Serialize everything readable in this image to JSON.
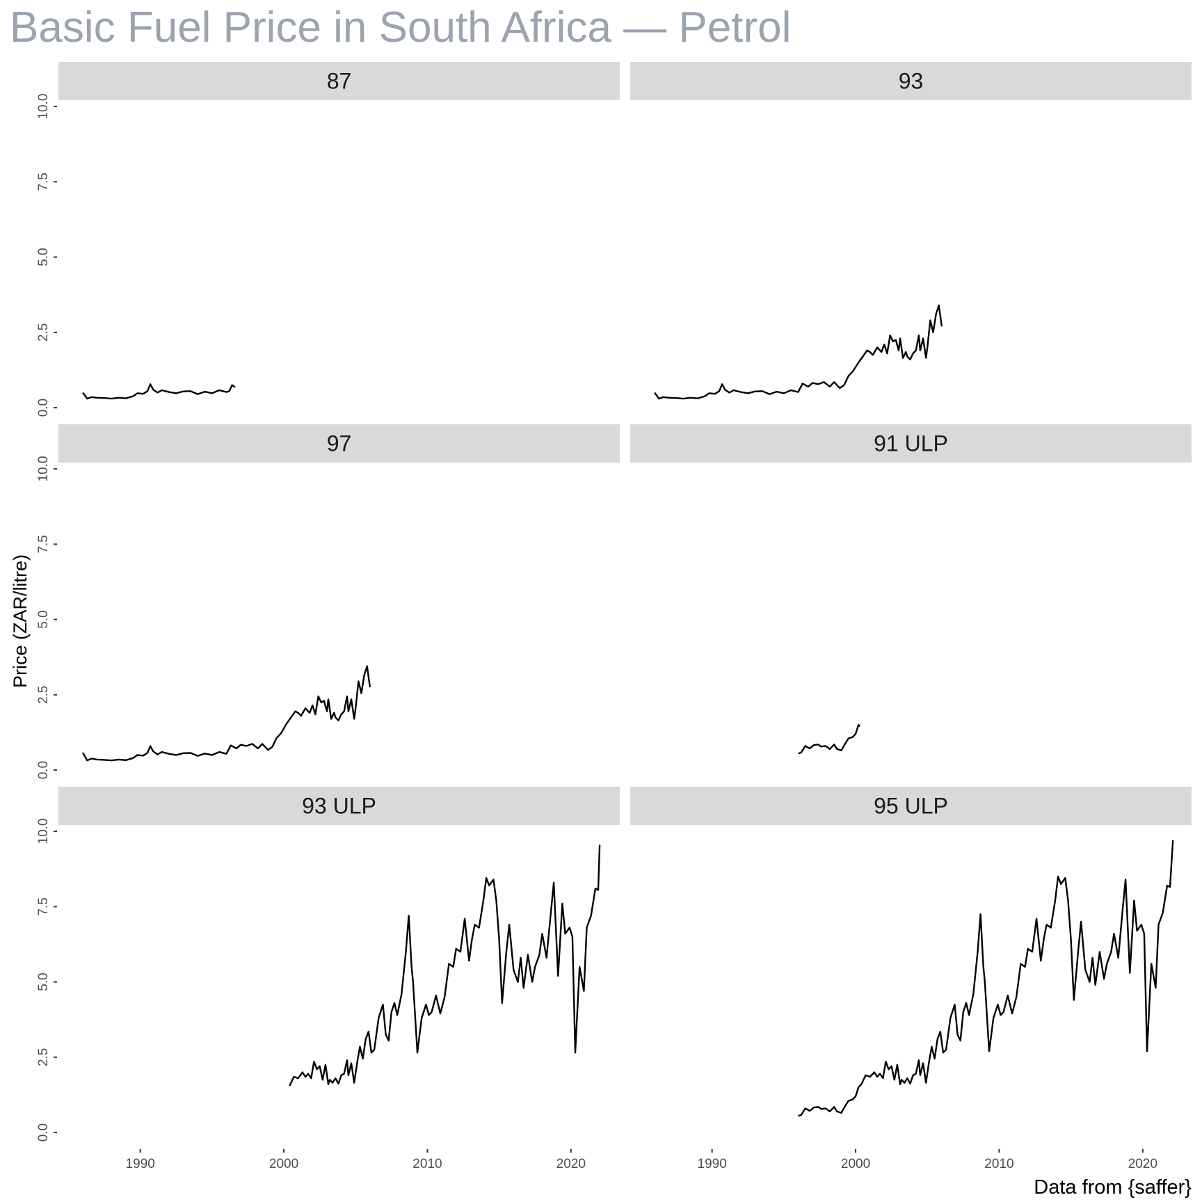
{
  "chart_data": {
    "type": "line",
    "title": "Basic Fuel Price in South Africa — Petrol",
    "xlabel": "",
    "ylabel": "Price (ZAR/litre)",
    "caption": "Data from {saffer}",
    "xlim": [
      1984.3,
      2023.4
    ],
    "ylim": [
      -0.46,
      10.21
    ],
    "x_ticks": [
      1990,
      2000,
      2010,
      2020
    ],
    "x_tick_labels": [
      "1990",
      "2000",
      "2010",
      "2020"
    ],
    "y_ticks": [
      0,
      2.5,
      5,
      7.5,
      10
    ],
    "y_tick_labels": [
      "0.0",
      "2.5",
      "5.0",
      "7.5",
      "10.0"
    ],
    "grid": false,
    "facet_layout": "3 rows x 2 columns",
    "panels": [
      {
        "name": "87",
        "x": [
          1986.0,
          1986.3,
          1986.6,
          1987.0,
          1987.5,
          1988.0,
          1988.5,
          1989.0,
          1989.5,
          1989.8,
          1990.2,
          1990.5,
          1990.7,
          1990.9,
          1991.2,
          1991.5,
          1992.0,
          1992.5,
          1993.0,
          1993.5,
          1994.0,
          1994.5,
          1995.0,
          1995.5,
          1996.0,
          1996.2,
          1996.4,
          1996.6
        ],
        "y": [
          0.5,
          0.3,
          0.35,
          0.33,
          0.32,
          0.3,
          0.33,
          0.31,
          0.38,
          0.48,
          0.46,
          0.55,
          0.78,
          0.6,
          0.5,
          0.58,
          0.52,
          0.48,
          0.54,
          0.55,
          0.45,
          0.53,
          0.48,
          0.58,
          0.52,
          0.55,
          0.75,
          0.68
        ]
      },
      {
        "name": "93",
        "x": [
          1986.0,
          1986.3,
          1986.6,
          1987.0,
          1987.5,
          1988.0,
          1988.5,
          1989.0,
          1989.5,
          1989.8,
          1990.2,
          1990.5,
          1990.7,
          1990.9,
          1991.2,
          1991.5,
          1992.0,
          1992.5,
          1993.0,
          1993.5,
          1994.0,
          1994.5,
          1995.0,
          1995.5,
          1996.0,
          1996.3,
          1996.7,
          1997.0,
          1997.4,
          1997.8,
          1998.2,
          1998.5,
          1998.9,
          1999.2,
          1999.5,
          1999.8,
          2000.2,
          2000.5,
          2000.8,
          2001.0,
          2001.2,
          2001.5,
          2001.8,
          2002.0,
          2002.2,
          2002.4,
          2002.6,
          2002.8,
          2003.0,
          2003.1,
          2003.3,
          2003.5,
          2003.6,
          2003.8,
          2004.0,
          2004.2,
          2004.4,
          2004.5,
          2004.7,
          2004.9,
          2005.0,
          2005.2,
          2005.4,
          2005.6,
          2005.8,
          2006.0
        ],
        "y": [
          0.5,
          0.3,
          0.35,
          0.33,
          0.32,
          0.3,
          0.33,
          0.31,
          0.38,
          0.48,
          0.46,
          0.55,
          0.78,
          0.6,
          0.5,
          0.58,
          0.52,
          0.48,
          0.54,
          0.55,
          0.45,
          0.53,
          0.48,
          0.58,
          0.52,
          0.8,
          0.7,
          0.82,
          0.78,
          0.85,
          0.7,
          0.85,
          0.65,
          0.75,
          1.05,
          1.2,
          1.5,
          1.7,
          1.9,
          1.85,
          1.75,
          2.0,
          1.85,
          2.1,
          1.8,
          2.4,
          2.2,
          2.25,
          1.9,
          2.3,
          1.65,
          1.85,
          1.7,
          1.6,
          1.8,
          1.9,
          2.4,
          1.9,
          2.3,
          1.65,
          2.0,
          2.9,
          2.5,
          3.1,
          3.4,
          2.7
        ]
      },
      {
        "name": "97",
        "x": [
          1986.0,
          1986.3,
          1986.6,
          1987.0,
          1987.5,
          1988.0,
          1988.5,
          1989.0,
          1989.5,
          1989.8,
          1990.2,
          1990.5,
          1990.7,
          1990.9,
          1991.2,
          1991.5,
          1992.0,
          1992.5,
          1993.0,
          1993.5,
          1994.0,
          1994.5,
          1995.0,
          1995.5,
          1996.0,
          1996.3,
          1996.7,
          1997.0,
          1997.4,
          1997.8,
          1998.2,
          1998.5,
          1998.9,
          1999.2,
          1999.5,
          1999.8,
          2000.2,
          2000.5,
          2000.8,
          2001.0,
          2001.2,
          2001.5,
          2001.8,
          2002.0,
          2002.2,
          2002.4,
          2002.6,
          2002.8,
          2003.0,
          2003.1,
          2003.3,
          2003.5,
          2003.6,
          2003.8,
          2004.0,
          2004.2,
          2004.4,
          2004.5,
          2004.7,
          2004.9,
          2005.0,
          2005.2,
          2005.4,
          2005.6,
          2005.8,
          2006.0
        ],
        "y": [
          0.58,
          0.32,
          0.38,
          0.35,
          0.34,
          0.32,
          0.35,
          0.33,
          0.4,
          0.5,
          0.48,
          0.57,
          0.8,
          0.62,
          0.52,
          0.6,
          0.54,
          0.5,
          0.56,
          0.57,
          0.47,
          0.55,
          0.5,
          0.6,
          0.54,
          0.82,
          0.72,
          0.84,
          0.8,
          0.87,
          0.72,
          0.87,
          0.67,
          0.77,
          1.07,
          1.22,
          1.55,
          1.75,
          1.95,
          1.9,
          1.8,
          2.05,
          1.9,
          2.15,
          1.85,
          2.45,
          2.25,
          2.3,
          1.95,
          2.35,
          1.7,
          1.9,
          1.75,
          1.65,
          1.85,
          1.95,
          2.45,
          1.95,
          2.35,
          1.7,
          2.05,
          2.95,
          2.55,
          3.15,
          3.45,
          2.75
        ]
      },
      {
        "name": "91 ULP",
        "x": [
          1996.0,
          1996.2,
          1996.5,
          1996.8,
          1997.1,
          1997.4,
          1997.6,
          1997.9,
          1998.2,
          1998.5,
          1998.7,
          1999.0,
          1999.3,
          1999.5,
          1999.8,
          2000.0,
          2000.2,
          2000.3
        ],
        "y": [
          0.55,
          0.58,
          0.8,
          0.72,
          0.83,
          0.85,
          0.78,
          0.8,
          0.7,
          0.85,
          0.7,
          0.65,
          0.9,
          1.05,
          1.1,
          1.2,
          1.5,
          1.45
        ]
      },
      {
        "name": "93 ULP",
        "x": [
          2000.4,
          2000.7,
          2001.0,
          2001.3,
          2001.5,
          2001.7,
          2001.9,
          2002.1,
          2002.3,
          2002.5,
          2002.7,
          2002.9,
          2003.1,
          2003.2,
          2003.4,
          2003.6,
          2003.8,
          2004.0,
          2004.2,
          2004.4,
          2004.5,
          2004.7,
          2004.9,
          2005.1,
          2005.3,
          2005.5,
          2005.7,
          2005.9,
          2006.1,
          2006.3,
          2006.6,
          2006.9,
          2007.1,
          2007.3,
          2007.5,
          2007.7,
          2007.9,
          2008.2,
          2008.5,
          2008.7,
          2008.9,
          2009.0,
          2009.3,
          2009.6,
          2009.9,
          2010.1,
          2010.3,
          2010.6,
          2010.9,
          2011.2,
          2011.5,
          2011.8,
          2012.0,
          2012.3,
          2012.6,
          2012.9,
          2013.1,
          2013.3,
          2013.6,
          2013.9,
          2014.1,
          2014.3,
          2014.6,
          2014.8,
          2015.0,
          2015.2,
          2015.5,
          2015.7,
          2016.0,
          2016.3,
          2016.5,
          2016.7,
          2017.0,
          2017.3,
          2017.5,
          2017.8,
          2018.0,
          2018.3,
          2018.6,
          2018.8,
          2019.1,
          2019.4,
          2019.6,
          2019.9,
          2020.1,
          2020.3,
          2020.6,
          2020.9,
          2021.1,
          2021.4,
          2021.7,
          2021.9,
          2022.0
        ],
        "y": [
          1.55,
          1.85,
          1.8,
          2.0,
          1.85,
          1.95,
          1.8,
          2.35,
          2.1,
          2.2,
          1.75,
          2.25,
          1.6,
          1.75,
          1.65,
          1.8,
          1.62,
          1.9,
          1.95,
          2.4,
          1.9,
          2.3,
          1.65,
          2.3,
          2.85,
          2.45,
          3.1,
          3.35,
          2.65,
          2.75,
          3.8,
          4.25,
          3.25,
          3.05,
          4.0,
          4.3,
          3.9,
          4.6,
          6.0,
          7.2,
          5.5,
          5.0,
          2.65,
          3.8,
          4.25,
          3.9,
          4.0,
          4.55,
          3.95,
          4.5,
          5.6,
          5.5,
          6.1,
          6.0,
          7.1,
          5.7,
          6.4,
          6.9,
          6.8,
          7.7,
          8.45,
          8.2,
          8.4,
          7.7,
          6.4,
          4.3,
          6.0,
          6.9,
          5.4,
          5.0,
          5.8,
          4.8,
          5.9,
          5.0,
          5.5,
          5.9,
          6.6,
          5.8,
          7.3,
          8.3,
          5.2,
          7.6,
          6.6,
          6.8,
          6.5,
          2.65,
          5.5,
          4.7,
          6.8,
          7.2,
          8.1,
          8.05,
          9.55
        ]
      },
      {
        "name": "95 ULP",
        "x": [
          1996.0,
          1996.2,
          1996.5,
          1996.8,
          1997.1,
          1997.4,
          1997.6,
          1997.9,
          1998.2,
          1998.5,
          1998.7,
          1999.0,
          1999.3,
          1999.5,
          1999.8,
          2000.0,
          2000.2,
          2000.4,
          2000.7,
          2001.0,
          2001.3,
          2001.5,
          2001.7,
          2001.9,
          2002.1,
          2002.3,
          2002.5,
          2002.7,
          2002.9,
          2003.1,
          2003.2,
          2003.4,
          2003.6,
          2003.8,
          2004.0,
          2004.2,
          2004.4,
          2004.5,
          2004.7,
          2004.9,
          2005.1,
          2005.3,
          2005.5,
          2005.7,
          2005.9,
          2006.1,
          2006.3,
          2006.6,
          2006.9,
          2007.1,
          2007.3,
          2007.5,
          2007.7,
          2007.9,
          2008.2,
          2008.5,
          2008.7,
          2008.9,
          2009.0,
          2009.3,
          2009.6,
          2009.9,
          2010.1,
          2010.3,
          2010.6,
          2010.9,
          2011.2,
          2011.5,
          2011.8,
          2012.0,
          2012.3,
          2012.6,
          2012.9,
          2013.1,
          2013.3,
          2013.6,
          2013.9,
          2014.1,
          2014.3,
          2014.6,
          2014.8,
          2015.0,
          2015.2,
          2015.5,
          2015.7,
          2016.0,
          2016.3,
          2016.5,
          2016.7,
          2017.0,
          2017.3,
          2017.5,
          2017.8,
          2018.0,
          2018.3,
          2018.6,
          2018.8,
          2019.1,
          2019.4,
          2019.6,
          2019.9,
          2020.1,
          2020.3,
          2020.6,
          2020.9,
          2021.1,
          2021.4,
          2021.7,
          2021.9,
          2022.1
        ],
        "y": [
          0.55,
          0.58,
          0.8,
          0.72,
          0.83,
          0.85,
          0.78,
          0.8,
          0.7,
          0.85,
          0.7,
          0.65,
          0.9,
          1.05,
          1.1,
          1.2,
          1.5,
          1.6,
          1.9,
          1.85,
          2.0,
          1.85,
          1.95,
          1.8,
          2.35,
          2.1,
          2.2,
          1.75,
          2.25,
          1.6,
          1.75,
          1.65,
          1.8,
          1.62,
          1.9,
          1.95,
          2.4,
          1.9,
          2.3,
          1.65,
          2.3,
          2.85,
          2.45,
          3.1,
          3.35,
          2.65,
          2.75,
          3.8,
          4.25,
          3.25,
          3.05,
          4.0,
          4.3,
          3.9,
          4.6,
          6.0,
          7.25,
          5.5,
          5.0,
          2.7,
          3.8,
          4.25,
          3.9,
          4.0,
          4.55,
          3.95,
          4.5,
          5.6,
          5.5,
          6.1,
          6.0,
          7.1,
          5.7,
          6.4,
          6.9,
          6.8,
          7.7,
          8.5,
          8.25,
          8.45,
          7.7,
          6.4,
          4.4,
          6.0,
          7.0,
          5.4,
          5.0,
          5.8,
          4.9,
          6.0,
          5.1,
          5.6,
          6.0,
          6.6,
          5.8,
          7.4,
          8.4,
          5.3,
          7.7,
          6.7,
          6.9,
          6.6,
          2.7,
          5.6,
          4.8,
          6.9,
          7.3,
          8.2,
          8.15,
          9.7
        ]
      }
    ]
  },
  "colors": {
    "title": "#9aa3ae",
    "strip_bg": "#d9d9d9",
    "line": "#000000",
    "tick_text": "#4d4d4d"
  }
}
